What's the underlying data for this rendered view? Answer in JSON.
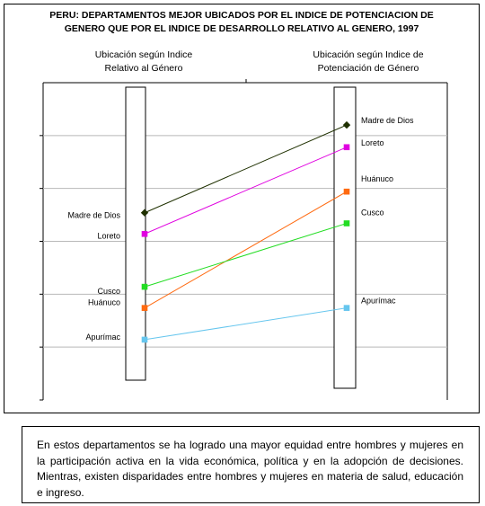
{
  "chart_data": {
    "type": "slope",
    "title": "PERU: DEPARTAMENTOS MEJOR UBICADOS POR EL INDICE DE POTENCIACION DE GENERO QUE POR EL INDICE DE DESARROLLO RELATIVO AL GENERO, 1997",
    "title_lines": [
      "PERU: DEPARTAMENTOS MEJOR UBICADOS POR EL INDICE DE POTENCIACION DE",
      "GENERO QUE POR EL INDICE DE DESARROLLO RELATIVO AL GENERO, 1997"
    ],
    "axes": [
      {
        "name": "Ubicación según Indice Relativo al Género",
        "lines": [
          "Ubicación según Indice",
          "Relativo al Género"
        ]
      },
      {
        "name": "Ubicación según Indice de Potenciación de Género",
        "lines": [
          "Ubicación según Indice de",
          "Potenciación de Género"
        ]
      }
    ],
    "y_range": [
      0,
      30
    ],
    "y_inverted": true,
    "grid": true,
    "series": [
      {
        "name": "Madre de Dios",
        "color": "#1f3000",
        "marker": "diamond",
        "values": [
          12.3,
          4.0
        ]
      },
      {
        "name": "Loreto",
        "color": "#e000e0",
        "marker": "square",
        "values": [
          14.3,
          6.1
        ]
      },
      {
        "name": "Huánuco",
        "color": "#ff6a10",
        "marker": "square",
        "values": [
          21.3,
          10.3
        ]
      },
      {
        "name": "Cusco",
        "color": "#22dd22",
        "marker": "square",
        "values": [
          19.3,
          13.3
        ]
      },
      {
        "name": "Apurímac",
        "color": "#66c6ee",
        "marker": "square",
        "values": [
          24.3,
          21.3
        ]
      }
    ]
  },
  "note": "En estos departamentos  se ha logrado una mayor equidad entre hombres y mujeres en la participación activa en la vida económica,  política y en la adopción de decisiones. Mientras, existen disparidades entre hombres y mujeres  en materia de salud, educación e ingreso."
}
